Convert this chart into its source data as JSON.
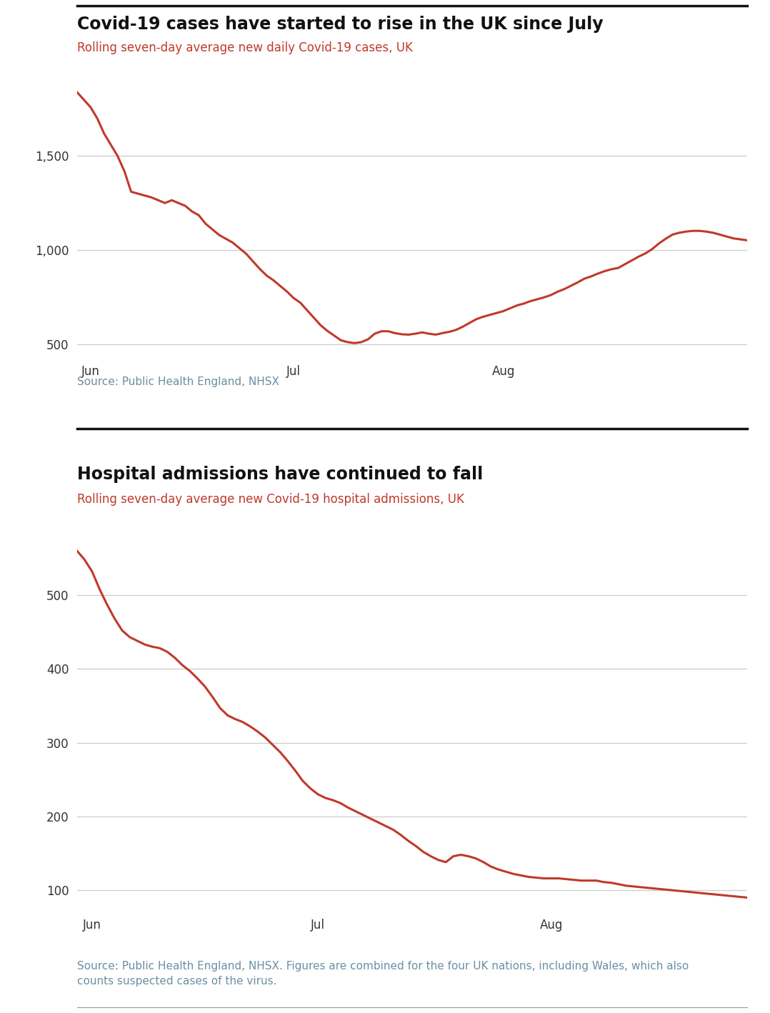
{
  "chart1_title": "Covid-19 cases have started to rise in the UK since July",
  "chart1_subtitle": "Rolling seven-day average new daily Covid-19 cases, UK",
  "chart1_source": "Source: Public Health England, NHSX",
  "chart1_yticks": [
    500,
    1000,
    1500
  ],
  "chart1_xlabels": [
    "Jun",
    "Jul",
    "Aug"
  ],
  "chart1_data": [
    1840,
    1800,
    1760,
    1700,
    1620,
    1560,
    1500,
    1420,
    1310,
    1300,
    1290,
    1280,
    1265,
    1250,
    1265,
    1250,
    1235,
    1205,
    1185,
    1140,
    1110,
    1080,
    1060,
    1040,
    1010,
    980,
    940,
    900,
    865,
    840,
    810,
    780,
    745,
    720,
    680,
    640,
    600,
    570,
    545,
    520,
    510,
    505,
    510,
    525,
    555,
    568,
    568,
    558,
    552,
    550,
    555,
    562,
    555,
    550,
    558,
    565,
    575,
    592,
    612,
    632,
    645,
    655,
    665,
    675,
    690,
    705,
    715,
    728,
    738,
    748,
    760,
    778,
    792,
    810,
    828,
    848,
    860,
    875,
    888,
    898,
    905,
    925,
    945,
    965,
    982,
    1005,
    1035,
    1060,
    1082,
    1092,
    1098,
    1102,
    1102,
    1098,
    1092,
    1082,
    1072,
    1062,
    1057,
    1052
  ],
  "chart1_ylim": [
    430,
    1950
  ],
  "chart2_title": "Hospital admissions have continued to fall",
  "chart2_subtitle": "Rolling seven-day average new Covid-19 hospital admissions, UK",
  "chart2_source": "Source: Public Health England, NHSX. Figures are combined for the four UK nations, including Wales, which also\ncounts suspected cases of the virus.",
  "chart2_yticks": [
    100,
    200,
    300,
    400,
    500
  ],
  "chart2_xlabels": [
    "Jun",
    "Jul",
    "Aug"
  ],
  "chart2_data": [
    560,
    548,
    532,
    508,
    487,
    468,
    452,
    443,
    438,
    433,
    430,
    428,
    423,
    415,
    405,
    397,
    387,
    376,
    362,
    347,
    337,
    332,
    328,
    322,
    315,
    307,
    297,
    287,
    275,
    262,
    248,
    238,
    230,
    225,
    222,
    218,
    212,
    207,
    202,
    197,
    192,
    187,
    182,
    175,
    167,
    160,
    152,
    146,
    141,
    138,
    146,
    148,
    146,
    143,
    138,
    132,
    128,
    125,
    122,
    120,
    118,
    117,
    116,
    116,
    116,
    115,
    114,
    113,
    113,
    113,
    111,
    110,
    108,
    106,
    105,
    104,
    103,
    102,
    101,
    100,
    99,
    98,
    97,
    96,
    95,
    94,
    93,
    92,
    91,
    90
  ],
  "chart2_ylim": [
    72,
    590
  ],
  "line_color": "#c0392b",
  "line_width": 2.2,
  "title_fontsize": 17,
  "subtitle_fontsize": 12,
  "source_fontsize": 11,
  "tick_fontsize": 12,
  "background_color": "#ffffff",
  "source_color": "#6b8fa3",
  "subtitle_color": "#c0392b",
  "title_color": "#111111",
  "grid_color": "#cccccc",
  "separator_color": "#111111"
}
